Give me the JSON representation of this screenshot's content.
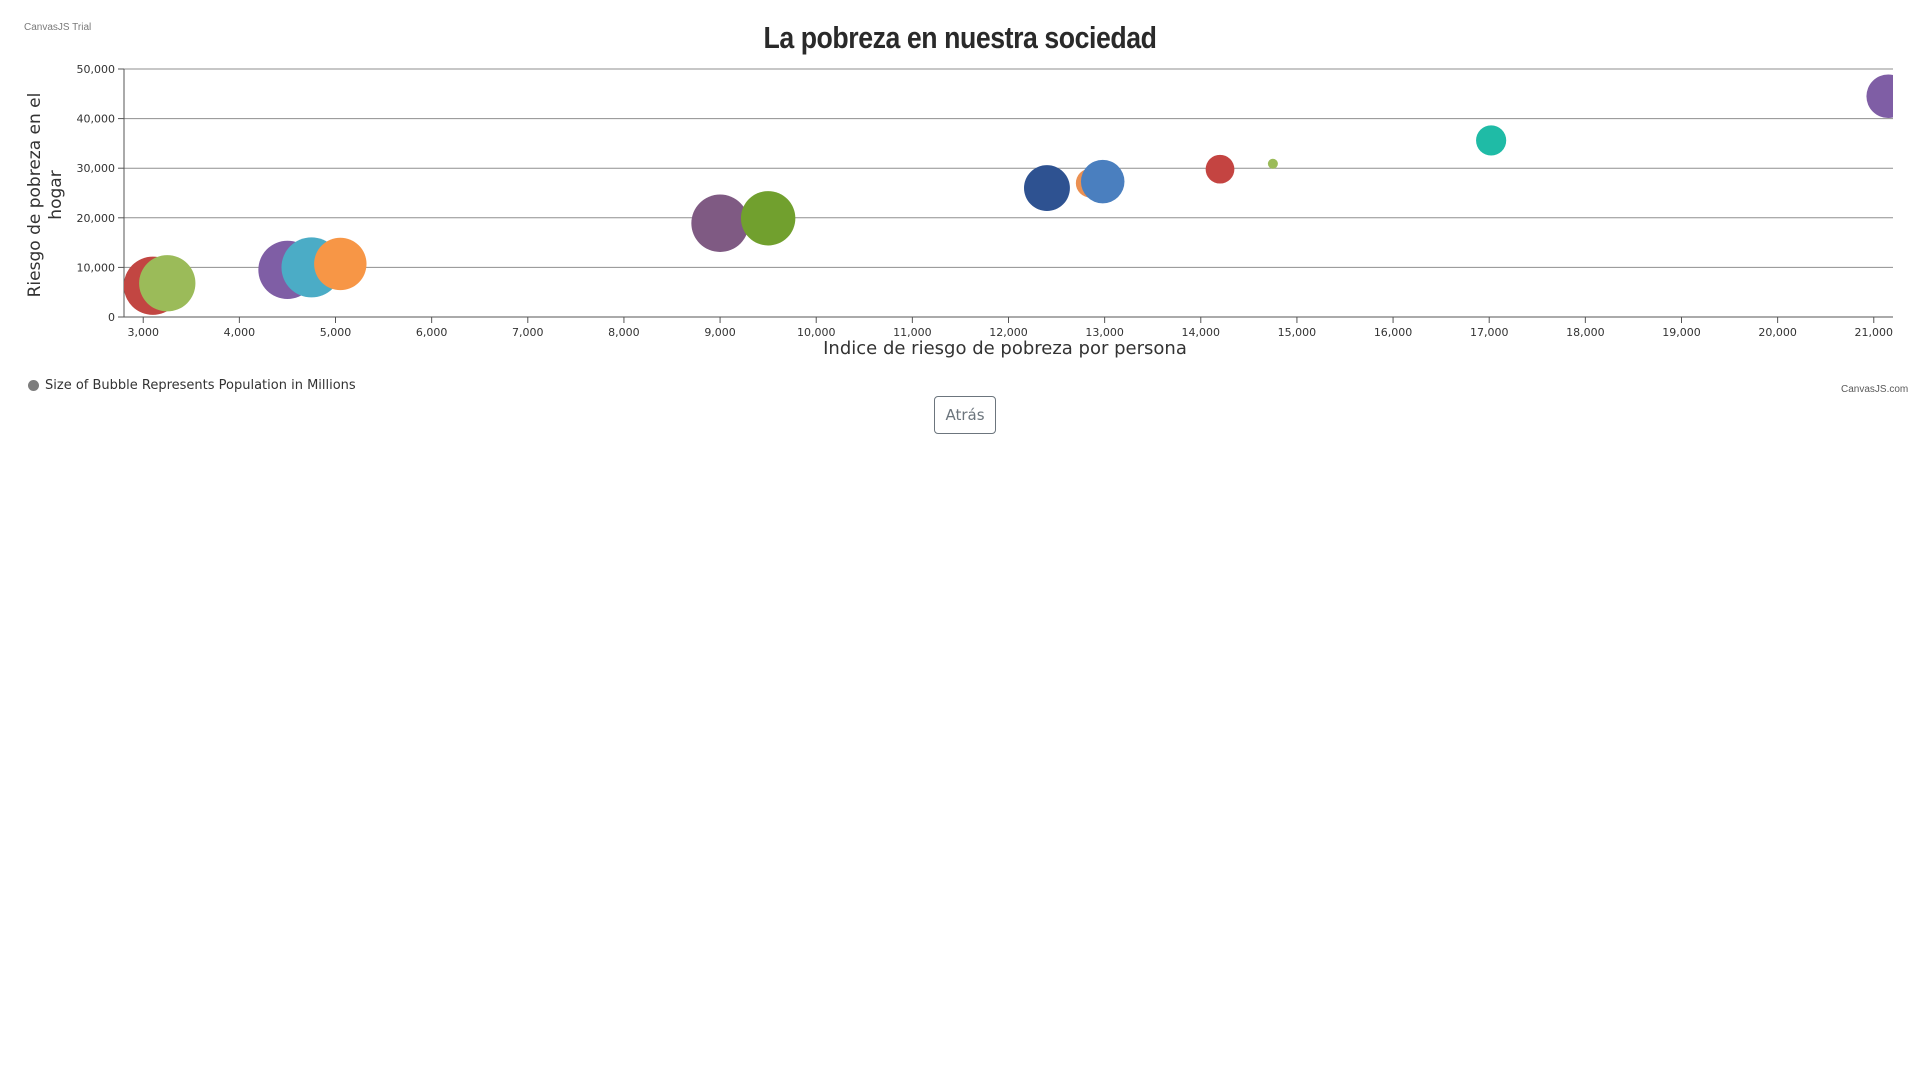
{
  "page": {
    "trial_watermark": "CanvasJS Trial",
    "credit": "CanvasJS.com",
    "back_button": "Atrás"
  },
  "chart_data": {
    "type": "scatter",
    "title": "La pobreza en nuestra sociedad",
    "xlabel": "Indice de riesgo de pobreza por persona",
    "ylabel": "Riesgo de pobreza en el hogar",
    "xlim": [
      2800,
      21200
    ],
    "ylim": [
      0,
      50000
    ],
    "x_ticks": [
      3000,
      4000,
      5000,
      6000,
      7000,
      8000,
      9000,
      10000,
      11000,
      12000,
      13000,
      14000,
      15000,
      16000,
      17000,
      18000,
      19000,
      20000,
      21000
    ],
    "y_ticks": [
      0,
      10000,
      20000,
      30000,
      40000,
      50000
    ],
    "grid": "horizontal",
    "legend": {
      "placement": "bottom-left",
      "label": "Size of Bubble Represents Population in Millions",
      "color": "#7d7d7d"
    },
    "points": [
      {
        "x": 3000,
        "y": 5800,
        "z": 25,
        "color": "#4aa3d0"
      },
      {
        "x": 3100,
        "y": 6300,
        "z": 80,
        "color": "#c24642"
      },
      {
        "x": 3250,
        "y": 6800,
        "z": 75,
        "color": "#9bbb59"
      },
      {
        "x": 4500,
        "y": 9500,
        "z": 80,
        "color": "#7f5ea5"
      },
      {
        "x": 4750,
        "y": 10000,
        "z": 85,
        "color": "#4bacc6"
      },
      {
        "x": 5050,
        "y": 10700,
        "z": 65,
        "color": "#f79646"
      },
      {
        "x": 9000,
        "y": 18900,
        "z": 78,
        "color": "#7f5a83"
      },
      {
        "x": 9500,
        "y": 19900,
        "z": 70,
        "color": "#71a02e"
      },
      {
        "x": 12400,
        "y": 26000,
        "z": 50,
        "color": "#2e5291"
      },
      {
        "x": 12850,
        "y": 27000,
        "z": 20,
        "color": "#eb9052"
      },
      {
        "x": 12980,
        "y": 27300,
        "z": 45,
        "color": "#4a7fbf"
      },
      {
        "x": 14200,
        "y": 29800,
        "z": 20,
        "color": "#c44441"
      },
      {
        "x": 14750,
        "y": 30900,
        "z": 3,
        "color": "#9bbb59"
      },
      {
        "x": 17020,
        "y": 35600,
        "z": 22,
        "color": "#1fbba6"
      },
      {
        "x": 21150,
        "y": 44500,
        "z": 45,
        "color": "#7f5ea5"
      }
    ],
    "z_range": [
      3,
      85
    ],
    "bubble_radius_range": [
      5,
      30
    ]
  }
}
